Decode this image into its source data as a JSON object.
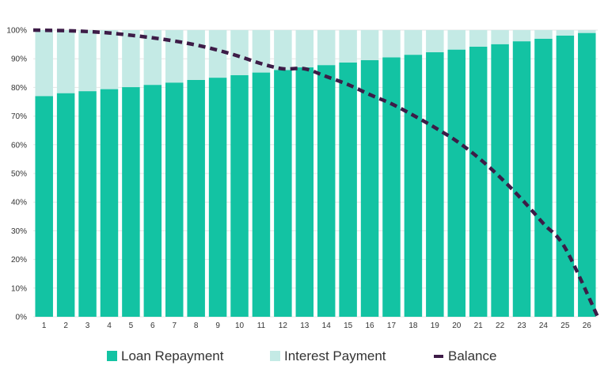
{
  "colors": {
    "loan_repayment": "#13c3a3",
    "interest_payment": "#c4eae5",
    "balance": "#3d1c47",
    "grid": "#e6e6e6"
  },
  "chart_data": {
    "type": "bar",
    "stacked": true,
    "categories": [
      "1",
      "2",
      "3",
      "4",
      "5",
      "6",
      "7",
      "8",
      "9",
      "10",
      "11",
      "12",
      "13",
      "14",
      "15",
      "16",
      "17",
      "18",
      "19",
      "20",
      "21",
      "22",
      "23",
      "24",
      "25",
      "26"
    ],
    "series": [
      {
        "name": "Loan Repayment",
        "values": [
          77,
          78,
          78.7,
          79.4,
          80.1,
          80.9,
          81.7,
          82.6,
          83.4,
          84.3,
          85.2,
          86.1,
          87,
          87.8,
          88.7,
          89.5,
          90.5,
          91.4,
          92.3,
          93.2,
          94.2,
          95.1,
          96.1,
          97,
          98.1,
          99
        ]
      },
      {
        "name": "Interest Payment",
        "values": [
          23,
          22,
          21.3,
          20.6,
          19.9,
          19.1,
          18.3,
          17.4,
          16.6,
          15.7,
          14.8,
          13.9,
          13,
          12.2,
          11.3,
          10.5,
          9.5,
          8.6,
          7.7,
          6.8,
          5.8,
          4.9,
          3.9,
          3,
          1.9,
          1
        ]
      },
      {
        "name": "Balance",
        "type": "line",
        "style": "dashed",
        "values": [
          100,
          99.8,
          99.5,
          99,
          98.2,
          97.3,
          96.2,
          94.8,
          93,
          90.8,
          88.3,
          86.5,
          86.5,
          83.8,
          81,
          77.5,
          74.3,
          70.3,
          66,
          61.3,
          55.5,
          48.7,
          41,
          32.5,
          24,
          0
        ]
      }
    ],
    "y_ticks": [
      "0%",
      "10%",
      "20%",
      "30%",
      "40%",
      "50%",
      "60%",
      "70%",
      "80%",
      "90%",
      "100%"
    ],
    "ylim": [
      0,
      100
    ],
    "y_unit": "%",
    "grid": true,
    "legend_position": "bottom"
  }
}
